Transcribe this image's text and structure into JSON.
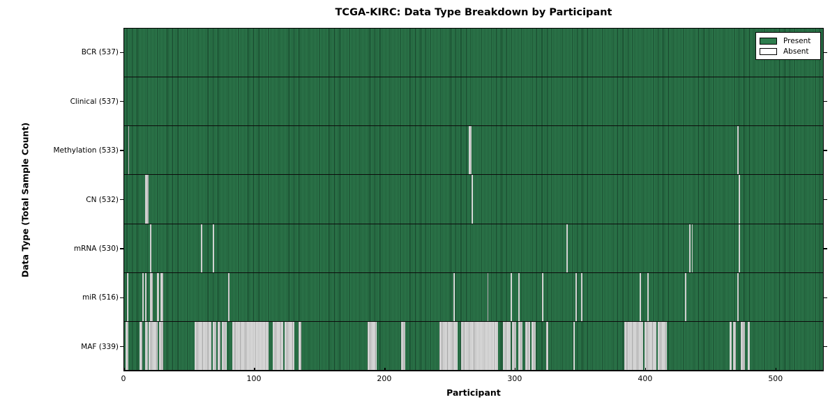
{
  "chart_data": {
    "type": "heatmap",
    "title": "TCGA-KIRC: Data Type Breakdown by Participant",
    "xlabel": "Participant",
    "ylabel": "Data Type (Total Sample Count)",
    "xlim": [
      0,
      537
    ],
    "x_ticks": [
      0,
      100,
      200,
      300,
      400,
      500
    ],
    "total_participants": 537,
    "grid": false,
    "legend": {
      "position": "upper right",
      "entries": [
        {
          "label": "Present",
          "color": "#2e7d4e"
        },
        {
          "label": "Absent",
          "color": "#ffffff"
        }
      ]
    },
    "colors": {
      "present": "#2e7d4e",
      "present_edge": "#143d27",
      "absent": "#e4e4e4",
      "absent_edge": "#9a9a9a",
      "frame": "#000000"
    },
    "rows": [
      {
        "label": "BCR",
        "present_count": 537,
        "tick_label": "BCR (537)",
        "absent_ranges": []
      },
      {
        "label": "Clinical",
        "present_count": 537,
        "tick_label": "Clinical (537)",
        "absent_ranges": []
      },
      {
        "label": "Methylation",
        "present_count": 533,
        "tick_label": "Methylation (533)",
        "absent_ranges": [
          [
            3,
            4
          ],
          [
            265,
            267
          ],
          [
            471,
            472
          ]
        ]
      },
      {
        "label": "CN",
        "present_count": 532,
        "tick_label": "CN (532)",
        "absent_ranges": [
          [
            16,
            19
          ],
          [
            267,
            268
          ],
          [
            472,
            473
          ]
        ]
      },
      {
        "label": "mRNA",
        "present_count": 530,
        "tick_label": "mRNA (530)",
        "absent_ranges": [
          [
            20,
            21
          ],
          [
            59,
            60
          ],
          [
            68,
            69
          ],
          [
            340,
            341
          ],
          [
            434,
            435
          ],
          [
            436,
            437
          ],
          [
            472,
            473
          ]
        ]
      },
      {
        "label": "miR",
        "present_count": 516,
        "tick_label": "miR (516)",
        "absent_ranges": [
          [
            2,
            3
          ],
          [
            14,
            15
          ],
          [
            16,
            17
          ],
          [
            20,
            22
          ],
          [
            25,
            27
          ],
          [
            28,
            30
          ],
          [
            80,
            81
          ],
          [
            253,
            254
          ],
          [
            279,
            280
          ],
          [
            297,
            298
          ],
          [
            303,
            304
          ],
          [
            321,
            322
          ],
          [
            347,
            348
          ],
          [
            351,
            352
          ],
          [
            396,
            397
          ],
          [
            402,
            403
          ],
          [
            431,
            432
          ],
          [
            471,
            472
          ]
        ]
      },
      {
        "label": "MAF",
        "present_count": 339,
        "tick_label": "MAF (339)",
        "absent_ranges": [
          [
            1,
            3
          ],
          [
            12,
            14
          ],
          [
            16,
            18
          ],
          [
            19,
            26
          ],
          [
            27,
            30
          ],
          [
            54,
            67
          ],
          [
            68,
            71
          ],
          [
            72,
            74
          ],
          [
            75,
            79
          ],
          [
            83,
            111
          ],
          [
            114,
            122
          ],
          [
            123,
            131
          ],
          [
            134,
            136
          ],
          [
            187,
            194
          ],
          [
            213,
            216
          ],
          [
            242,
            256
          ],
          [
            259,
            287
          ],
          [
            291,
            297
          ],
          [
            298,
            301
          ],
          [
            303,
            306
          ],
          [
            308,
            312
          ],
          [
            313,
            316
          ],
          [
            324,
            326
          ],
          [
            345,
            346
          ],
          [
            384,
            399
          ],
          [
            400,
            409
          ],
          [
            410,
            417
          ],
          [
            465,
            467
          ],
          [
            468,
            470
          ],
          [
            474,
            477
          ],
          [
            479,
            481
          ]
        ]
      }
    ]
  }
}
